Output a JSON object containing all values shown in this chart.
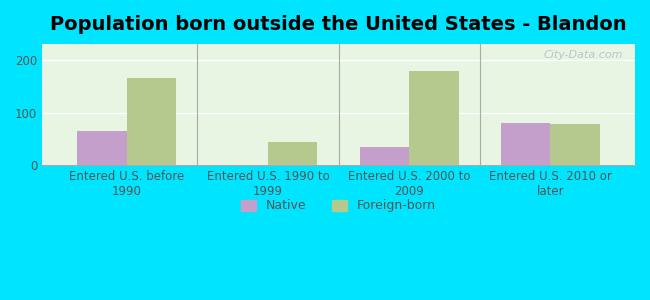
{
  "title": "Population born outside the United States - Blandon",
  "categories": [
    "Entered U.S. before\n1990",
    "Entered U.S. 1990 to\n1999",
    "Entered U.S. 2000 to\n2009",
    "Entered U.S. 2010 or\nlater"
  ],
  "native_values": [
    65,
    0,
    35,
    80
  ],
  "foreign_values": [
    165,
    45,
    178,
    78
  ],
  "native_color": "#c49fcc",
  "foreign_color": "#b5c98e",
  "bg_outer": "#00e5ff",
  "bg_plot_top": "#e8f5e2",
  "bg_plot_bottom": "#d8f0e8",
  "ylim": [
    0,
    230
  ],
  "yticks": [
    0,
    100,
    200
  ],
  "bar_width": 0.35,
  "legend_native": "Native",
  "legend_foreign": "Foreign-born",
  "watermark": "City-Data.com",
  "title_fontsize": 14,
  "tick_fontsize": 8.5
}
